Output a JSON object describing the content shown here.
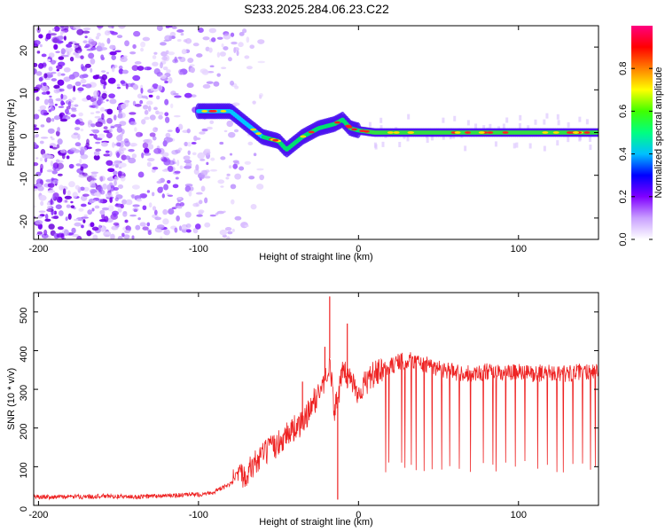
{
  "title": "S233.2025.284.06.23.C22",
  "chart_data": [
    {
      "type": "heatmap",
      "xlabel": "Height of straight line (km)",
      "ylabel": "Frequency (Hz)",
      "xlim": [
        -203,
        150
      ],
      "ylim": [
        -25,
        25
      ],
      "xticks": [
        -200,
        -100,
        0,
        100
      ],
      "yticks": [
        -20,
        -10,
        0,
        10,
        20
      ],
      "colorbar": {
        "label": "Normalized spectral amplitude",
        "range": [
          0,
          1
        ],
        "ticks": [
          "0.0",
          "0.2",
          "0.4",
          "0.6",
          "0.8"
        ],
        "colors": [
          "#ffffff",
          "#c9a0ff",
          "#8000ff",
          "#0000ff",
          "#00c0ff",
          "#00ff80",
          "#40ff00",
          "#ffff00",
          "#ff8000",
          "#ff0000",
          "#ff0080"
        ]
      },
      "ridge": [
        {
          "x": -100,
          "freq": 5
        },
        {
          "x": -80,
          "freq": 5
        },
        {
          "x": -70,
          "freq": 2
        },
        {
          "x": -60,
          "freq": -1
        },
        {
          "x": -50,
          "freq": -2
        },
        {
          "x": -45,
          "freq": -4
        },
        {
          "x": -35,
          "freq": -1
        },
        {
          "x": -25,
          "freq": 1
        },
        {
          "x": -15,
          "freq": 2
        },
        {
          "x": -10,
          "freq": 3
        },
        {
          "x": -5,
          "freq": 1
        },
        {
          "x": 0,
          "freq": 0.5
        },
        {
          "x": 10,
          "freq": 0
        },
        {
          "x": 150,
          "freq": 0
        }
      ],
      "noise_region": {
        "x_from": -203,
        "x_to": -60,
        "freq_from": -25,
        "freq_to": 25
      }
    },
    {
      "type": "line",
      "xlabel": "Height of straight line (km)",
      "ylabel": "SNR (10 * v/v)",
      "xlim": [
        -203,
        150
      ],
      "ylim": [
        0,
        550
      ],
      "xticks": [
        -200,
        -100,
        0,
        100
      ],
      "yticks": [
        0,
        100,
        200,
        300,
        400,
        500
      ],
      "color": "#ee2222",
      "series": [
        {
          "x": [
            -203,
            -180,
            -160,
            -140,
            -120,
            -100,
            -90,
            -80,
            -70,
            -60,
            -50,
            -45,
            -40,
            -35,
            -30,
            -25,
            -20,
            -18,
            -15,
            -12,
            -10,
            -5,
            0,
            5,
            10,
            15,
            20,
            25,
            30,
            35,
            40,
            50,
            60,
            70,
            80,
            90,
            100,
            110,
            120,
            130,
            140,
            150
          ],
          "values": [
            22,
            22,
            24,
            22,
            25,
            28,
            35,
            55,
            85,
            130,
            160,
            185,
            200,
            210,
            250,
            290,
            330,
            380,
            240,
            300,
            340,
            330,
            290,
            320,
            340,
            345,
            360,
            370,
            375,
            375,
            365,
            355,
            345,
            340,
            345,
            340,
            345,
            340,
            345,
            340,
            345,
            350
          ]
        }
      ],
      "spikes": [
        {
          "x": -18,
          "value": 540
        },
        {
          "x": -21,
          "value": 410
        },
        {
          "x": -7,
          "value": 470
        },
        {
          "x": -35,
          "value": 320
        },
        {
          "x": -13,
          "value": 15
        }
      ],
      "dropouts": [
        17,
        19,
        27,
        29,
        33,
        36,
        41,
        46,
        52,
        57,
        63,
        70,
        78,
        84,
        86,
        92,
        98,
        104,
        112,
        118,
        124,
        128,
        134,
        140,
        145,
        148
      ]
    }
  ]
}
